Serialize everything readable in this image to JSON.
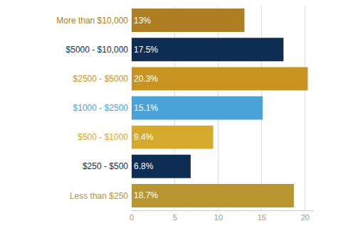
{
  "chart_data": {
    "type": "bar",
    "orientation": "horizontal",
    "categories": [
      "More than $10,000",
      "$5000 - $10,000",
      "$2500 - $5000",
      "$1000 - $2500",
      "$500 - $1000",
      "$250 - $500",
      "Less than $250"
    ],
    "values": [
      13,
      17.5,
      20.3,
      15.1,
      9.4,
      6.8,
      18.7
    ],
    "value_labels": [
      "13%",
      "17.5%",
      "20.3%",
      "15.1%",
      "9.4%",
      "6.8%",
      "18.7%"
    ],
    "colors": [
      "#ad7f22",
      "#0d2e52",
      "#c99320",
      "#4aa2d8",
      "#d4a92c",
      "#0d2e52",
      "#b9962f"
    ],
    "data_labels": true,
    "xlim": [
      0,
      21
    ],
    "xticks": [
      0,
      5,
      10,
      15,
      20
    ],
    "grid": true
  }
}
